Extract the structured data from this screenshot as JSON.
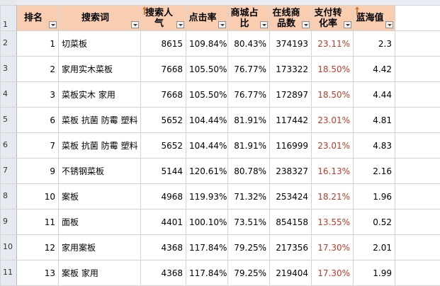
{
  "row_numbers": [
    "1",
    "2",
    "3",
    "4",
    "5",
    "6",
    "7",
    "8",
    "9",
    "10",
    "11"
  ],
  "headers": {
    "rank": "排名",
    "keyword": "搜索词",
    "popularity": "搜索人气",
    "ctr": "点击率",
    "mall_share": "商城占比",
    "online_products": "在线商品数",
    "conversion": "支付转化率",
    "blue_ocean": "蓝海值"
  },
  "rows": [
    {
      "rank": "1",
      "keyword": "切菜板",
      "popularity": "8615",
      "ctr": "109.84%",
      "mall_share": "80.43%",
      "online_products": "374193",
      "conversion": "23.11%",
      "blue_ocean": "2.3"
    },
    {
      "rank": "2",
      "keyword": "家用实木菜板",
      "popularity": "7668",
      "ctr": "105.50%",
      "mall_share": "76.77%",
      "online_products": "173322",
      "conversion": "18.50%",
      "blue_ocean": "4.42"
    },
    {
      "rank": "3",
      "keyword": "菜板实木 家用",
      "popularity": "7668",
      "ctr": "105.50%",
      "mall_share": "76.77%",
      "online_products": "172897",
      "conversion": "18.50%",
      "blue_ocean": "4.44"
    },
    {
      "rank": "6",
      "keyword": "菜板 抗菌 防霉 塑料",
      "popularity": "5652",
      "ctr": "104.44%",
      "mall_share": "81.91%",
      "online_products": "117442",
      "conversion": "23.01%",
      "blue_ocean": "4.81"
    },
    {
      "rank": "7",
      "keyword": "菜板 抗菌 防霉 塑料",
      "popularity": "5652",
      "ctr": "104.44%",
      "mall_share": "81.91%",
      "online_products": "116999",
      "conversion": "23.01%",
      "blue_ocean": "4.83"
    },
    {
      "rank": "9",
      "keyword": "不锈钢菜板",
      "popularity": "5144",
      "ctr": "120.61%",
      "mall_share": "80.78%",
      "online_products": "238327",
      "conversion": "16.13%",
      "blue_ocean": "2.16"
    },
    {
      "rank": "10",
      "keyword": "案板",
      "popularity": "4968",
      "ctr": "119.93%",
      "mall_share": "71.32%",
      "online_products": "253424",
      "conversion": "18.21%",
      "blue_ocean": "1.96"
    },
    {
      "rank": "11",
      "keyword": "面板",
      "popularity": "4401",
      "ctr": "100.10%",
      "mall_share": "73.51%",
      "online_products": "854158",
      "conversion": "13.55%",
      "blue_ocean": "0.52"
    },
    {
      "rank": "12",
      "keyword": "家用案板",
      "popularity": "4368",
      "ctr": "117.84%",
      "mall_share": "79.25%",
      "online_products": "217356",
      "conversion": "17.30%",
      "blue_ocean": "2.01"
    },
    {
      "rank": "13",
      "keyword": "案板 家用",
      "popularity": "4368",
      "ctr": "117.84%",
      "mall_share": "79.25%",
      "online_products": "219404",
      "conversion": "17.30%",
      "blue_ocean": "1.99"
    }
  ],
  "colors": {
    "header_fill": "#f9cdb0",
    "conversion_text": "#c0392b",
    "sort_arrow": "#d9742c"
  }
}
